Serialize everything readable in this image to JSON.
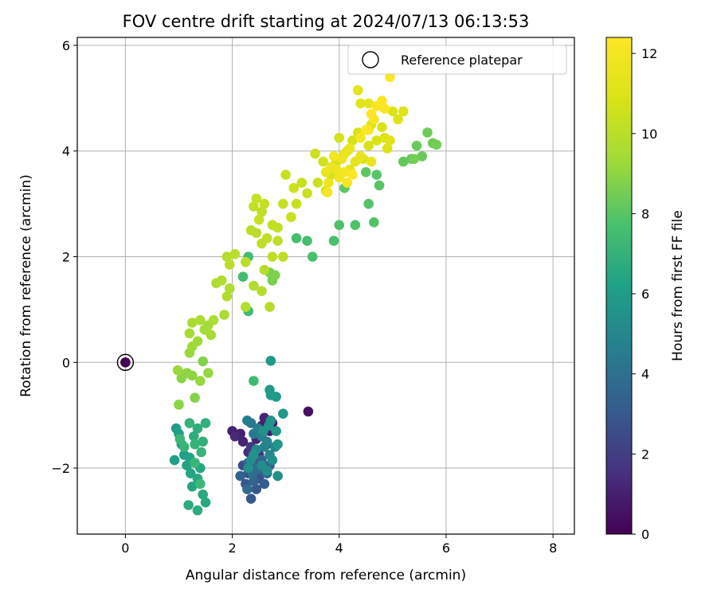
{
  "chart_data": {
    "type": "scatter",
    "title": "FOV centre drift starting at 2024/07/13 06:13:53",
    "xlabel": "Angular distance from reference (arcmin)",
    "ylabel": "Rotation from reference (arcmin)",
    "xlim": [
      -0.9,
      8.4
    ],
    "ylim": [
      -3.25,
      6.15
    ],
    "xticks": [
      "0",
      "2",
      "4",
      "6",
      "8"
    ],
    "yticks": [
      "−2",
      "0",
      "2",
      "4",
      "6"
    ],
    "grid": true,
    "legend": {
      "placement": "top-right",
      "entries": [
        "Reference platepar"
      ]
    },
    "reference_point": {
      "x": 0,
      "y": 0,
      "hours": 0
    },
    "colorbar": {
      "label": "Hours from first FF file",
      "min": 0,
      "max": 12.4,
      "ticks": [
        "0",
        "2",
        "4",
        "6",
        "8",
        "10",
        "12"
      ],
      "colormap": "viridis"
    },
    "points_xyh": [
      [
        3.42,
        -0.93,
        0.5
      ],
      [
        2.75,
        -1.15,
        0.8
      ],
      [
        2.55,
        -1.2,
        0.9
      ],
      [
        2.15,
        -1.35,
        1.0
      ],
      [
        2.0,
        -1.3,
        1.0
      ],
      [
        2.2,
        -1.5,
        1.1
      ],
      [
        2.7,
        -1.3,
        0.9
      ],
      [
        2.45,
        -1.45,
        1.2
      ],
      [
        2.05,
        -1.4,
        1.3
      ],
      [
        2.6,
        -1.05,
        1.1
      ],
      [
        2.3,
        -1.7,
        1.5
      ],
      [
        2.5,
        -1.75,
        1.6
      ],
      [
        2.35,
        -1.6,
        1.8
      ],
      [
        2.65,
        -1.55,
        1.9
      ],
      [
        2.2,
        -1.95,
        2.5
      ],
      [
        2.3,
        -2.1,
        2.6
      ],
      [
        2.4,
        -1.9,
        2.8
      ],
      [
        2.5,
        -2.2,
        2.7
      ],
      [
        2.25,
        -2.3,
        2.9
      ],
      [
        2.45,
        -2.4,
        2.9
      ],
      [
        2.35,
        -2.58,
        3.0
      ],
      [
        2.55,
        -2.05,
        3.1
      ],
      [
        2.6,
        -2.3,
        3.2
      ],
      [
        2.7,
        -1.95,
        3.3
      ],
      [
        2.3,
        -1.9,
        3.4
      ],
      [
        2.15,
        -2.15,
        3.4
      ],
      [
        2.4,
        -2.25,
        3.5
      ],
      [
        2.55,
        -1.85,
        3.5
      ],
      [
        2.65,
        -2.1,
        3.6
      ],
      [
        2.28,
        -2.4,
        3.7
      ],
      [
        2.48,
        -2.0,
        3.8
      ],
      [
        2.38,
        -2.12,
        3.9
      ],
      [
        2.35,
        -1.15,
        4.2
      ],
      [
        2.4,
        -1.35,
        4.4
      ],
      [
        2.48,
        -1.25,
        4.5
      ],
      [
        2.28,
        -1.1,
        4.6
      ],
      [
        2.55,
        -1.4,
        4.7
      ],
      [
        2.6,
        -1.6,
        4.8
      ],
      [
        2.65,
        -1.5,
        4.9
      ],
      [
        2.7,
        -1.75,
        5.0
      ],
      [
        2.8,
        -1.6,
        5.0
      ],
      [
        2.45,
        -1.65,
        5.1
      ],
      [
        2.35,
        -1.85,
        5.2
      ],
      [
        2.55,
        -1.95,
        5.2
      ],
      [
        2.65,
        -2.05,
        5.3
      ],
      [
        2.75,
        -1.85,
        5.3
      ],
      [
        2.85,
        -2.15,
        5.4
      ],
      [
        2.3,
        -2.0,
        5.4
      ],
      [
        2.4,
        -1.75,
        5.5
      ],
      [
        2.58,
        -1.3,
        5.5
      ],
      [
        2.68,
        -1.2,
        5.6
      ],
      [
        2.72,
        -1.1,
        5.6
      ],
      [
        2.82,
        -1.3,
        5.7
      ],
      [
        2.85,
        -1.55,
        5.7
      ],
      [
        2.95,
        -0.97,
        5.8
      ],
      [
        2.82,
        -0.65,
        5.8
      ],
      [
        2.7,
        -0.52,
        5.9
      ],
      [
        2.72,
        0.03,
        5.9
      ],
      [
        2.72,
        -0.62,
        6.0
      ],
      [
        0.95,
        -1.25,
        6.0
      ],
      [
        1.0,
        -1.35,
        6.1
      ],
      [
        1.05,
        -1.55,
        6.1
      ],
      [
        1.1,
        -1.75,
        6.2
      ],
      [
        0.92,
        -1.85,
        6.2
      ],
      [
        1.15,
        -1.95,
        6.3
      ],
      [
        1.2,
        -1.8,
        6.3
      ],
      [
        1.22,
        -2.1,
        6.4
      ],
      [
        1.25,
        -2.35,
        6.4
      ],
      [
        1.35,
        -2.2,
        6.5
      ],
      [
        1.4,
        -2.0,
        6.5
      ],
      [
        1.45,
        -2.5,
        6.6
      ],
      [
        1.5,
        -2.65,
        6.6
      ],
      [
        1.35,
        -2.8,
        6.7
      ],
      [
        1.18,
        -2.7,
        6.7
      ],
      [
        1.28,
        -1.4,
        6.8
      ],
      [
        1.35,
        -1.25,
        6.8
      ],
      [
        1.45,
        -1.5,
        6.9
      ],
      [
        1.5,
        -1.15,
        6.9
      ],
      [
        1.2,
        -1.15,
        7.0
      ],
      [
        1.3,
        -1.55,
        7.0
      ],
      [
        1.42,
        -1.7,
        7.1
      ],
      [
        1.1,
        -1.6,
        7.1
      ],
      [
        1.02,
        -1.45,
        7.2
      ],
      [
        1.3,
        -1.9,
        7.2
      ],
      [
        1.4,
        -2.3,
        7.3
      ],
      [
        2.4,
        -0.35,
        7.4
      ],
      [
        2.3,
        0.97,
        7.4
      ],
      [
        2.2,
        1.62,
        7.5
      ],
      [
        2.3,
        2.0,
        7.5
      ],
      [
        3.2,
        2.35,
        7.6
      ],
      [
        3.4,
        2.3,
        7.6
      ],
      [
        3.5,
        2.0,
        7.7
      ],
      [
        3.9,
        2.3,
        7.7
      ],
      [
        4.0,
        2.6,
        7.8
      ],
      [
        4.3,
        2.6,
        7.8
      ],
      [
        4.55,
        3.0,
        7.9
      ],
      [
        4.65,
        2.65,
        7.9
      ],
      [
        4.75,
        3.35,
        8.0
      ],
      [
        4.7,
        3.55,
        8.0
      ],
      [
        4.1,
        3.3,
        8.1
      ],
      [
        4.5,
        3.6,
        8.1
      ],
      [
        5.2,
        3.8,
        8.2
      ],
      [
        5.35,
        3.85,
        8.2
      ],
      [
        5.45,
        4.1,
        8.3
      ],
      [
        5.55,
        3.9,
        8.3
      ],
      [
        5.65,
        4.35,
        8.4
      ],
      [
        5.75,
        4.15,
        8.4
      ],
      [
        5.82,
        4.12,
        8.5
      ],
      [
        5.4,
        3.85,
        8.5
      ],
      [
        2.7,
        1.7,
        8.6
      ],
      [
        2.75,
        1.55,
        8.6
      ],
      [
        2.8,
        1.65,
        8.7
      ],
      [
        1.45,
        0.02,
        8.8
      ],
      [
        1.3,
        -0.67,
        8.8
      ],
      [
        1.0,
        -0.8,
        8.9
      ],
      [
        1.05,
        -0.3,
        8.9
      ],
      [
        1.15,
        -0.2,
        9.0
      ],
      [
        1.25,
        -0.25,
        9.0
      ],
      [
        1.4,
        -0.35,
        9.1
      ],
      [
        1.55,
        -0.2,
        9.1
      ],
      [
        0.98,
        -0.15,
        9.2
      ],
      [
        1.2,
        0.18,
        9.2
      ],
      [
        1.25,
        0.3,
        9.3
      ],
      [
        1.35,
        0.4,
        9.3
      ],
      [
        1.48,
        0.62,
        9.4
      ],
      [
        1.55,
        0.7,
        9.4
      ],
      [
        1.6,
        0.52,
        9.5
      ],
      [
        1.2,
        0.55,
        9.5
      ],
      [
        1.25,
        0.75,
        9.5
      ],
      [
        1.4,
        0.8,
        9.6
      ],
      [
        1.65,
        0.8,
        9.6
      ],
      [
        1.85,
        0.9,
        9.6
      ],
      [
        1.7,
        1.5,
        9.7
      ],
      [
        1.8,
        1.55,
        9.7
      ],
      [
        1.95,
        1.4,
        9.7
      ],
      [
        1.9,
        1.25,
        9.8
      ],
      [
        2.25,
        1.05,
        9.8
      ],
      [
        2.4,
        1.45,
        9.8
      ],
      [
        2.55,
        1.35,
        9.9
      ],
      [
        2.7,
        1.05,
        9.9
      ],
      [
        2.6,
        1.75,
        9.9
      ],
      [
        1.9,
        2.0,
        9.9
      ],
      [
        1.95,
        1.85,
        10.0
      ],
      [
        2.05,
        2.05,
        10.0
      ],
      [
        2.25,
        1.9,
        10.0
      ],
      [
        2.35,
        2.5,
        10.0
      ],
      [
        2.45,
        2.45,
        10.0
      ],
      [
        2.55,
        2.25,
        10.1
      ],
      [
        2.75,
        2.0,
        10.1
      ],
      [
        2.95,
        2.0,
        10.1
      ],
      [
        2.85,
        2.3,
        10.1
      ],
      [
        2.65,
        2.35,
        10.1
      ],
      [
        2.75,
        2.6,
        10.2
      ],
      [
        2.85,
        2.55,
        10.2
      ],
      [
        2.4,
        2.95,
        10.2
      ],
      [
        2.55,
        2.85,
        10.2
      ],
      [
        2.6,
        3.0,
        10.3
      ],
      [
        2.45,
        3.1,
        10.3
      ],
      [
        2.5,
        2.7,
        10.3
      ],
      [
        2.95,
        3.0,
        10.3
      ],
      [
        3.1,
        2.75,
        10.4
      ],
      [
        3.2,
        3.0,
        10.4
      ],
      [
        3.0,
        3.55,
        10.4
      ],
      [
        3.3,
        3.4,
        10.4
      ],
      [
        3.15,
        3.3,
        10.5
      ],
      [
        3.4,
        3.2,
        10.5
      ],
      [
        3.6,
        3.4,
        10.5
      ],
      [
        3.55,
        3.95,
        10.5
      ],
      [
        3.75,
        3.25,
        10.6
      ],
      [
        3.7,
        3.8,
        10.6
      ],
      [
        3.85,
        3.55,
        10.6
      ],
      [
        3.95,
        3.8,
        10.6
      ],
      [
        4.0,
        4.25,
        10.7
      ],
      [
        4.15,
        4.0,
        10.7
      ],
      [
        4.25,
        4.2,
        10.7
      ],
      [
        4.35,
        4.35,
        10.8
      ],
      [
        4.45,
        3.85,
        10.8
      ],
      [
        4.55,
        4.1,
        10.8
      ],
      [
        4.6,
        4.5,
        10.9
      ],
      [
        4.7,
        4.2,
        10.9
      ],
      [
        4.8,
        4.45,
        10.9
      ],
      [
        4.85,
        4.25,
        11.0
      ],
      [
        4.9,
        4.05,
        11.0
      ],
      [
        5.0,
        4.75,
        11.0
      ],
      [
        5.1,
        4.6,
        11.1
      ],
      [
        5.2,
        4.75,
        11.1
      ],
      [
        4.95,
        4.2,
        11.2
      ],
      [
        4.4,
        4.9,
        11.2
      ],
      [
        4.35,
        5.15,
        11.3
      ],
      [
        4.55,
        4.9,
        11.3
      ],
      [
        4.2,
        3.65,
        11.4
      ],
      [
        4.3,
        3.8,
        11.4
      ],
      [
        4.4,
        3.9,
        11.5
      ],
      [
        4.1,
        3.95,
        11.5
      ],
      [
        4.6,
        3.8,
        11.5
      ],
      [
        4.2,
        4.05,
        11.6
      ],
      [
        3.75,
        3.6,
        11.6
      ],
      [
        3.8,
        3.4,
        11.7
      ],
      [
        3.85,
        3.7,
        11.7
      ],
      [
        3.95,
        3.65,
        11.8
      ],
      [
        4.05,
        3.85,
        11.8
      ],
      [
        3.9,
        3.9,
        11.9
      ],
      [
        4.0,
        3.5,
        11.9
      ],
      [
        4.1,
        3.6,
        12.0
      ],
      [
        4.15,
        3.4,
        12.0
      ],
      [
        3.78,
        3.22,
        12.0
      ],
      [
        4.4,
        4.25,
        12.1
      ],
      [
        4.55,
        4.4,
        12.1
      ],
      [
        4.65,
        4.6,
        12.1
      ],
      [
        4.7,
        4.85,
        12.2
      ],
      [
        4.8,
        4.95,
        12.2
      ],
      [
        4.85,
        4.8,
        12.2
      ],
      [
        4.95,
        5.4,
        12.3
      ],
      [
        4.5,
        4.4,
        12.3
      ],
      [
        4.6,
        4.7,
        12.4
      ],
      [
        4.25,
        3.55,
        12.4
      ]
    ]
  }
}
